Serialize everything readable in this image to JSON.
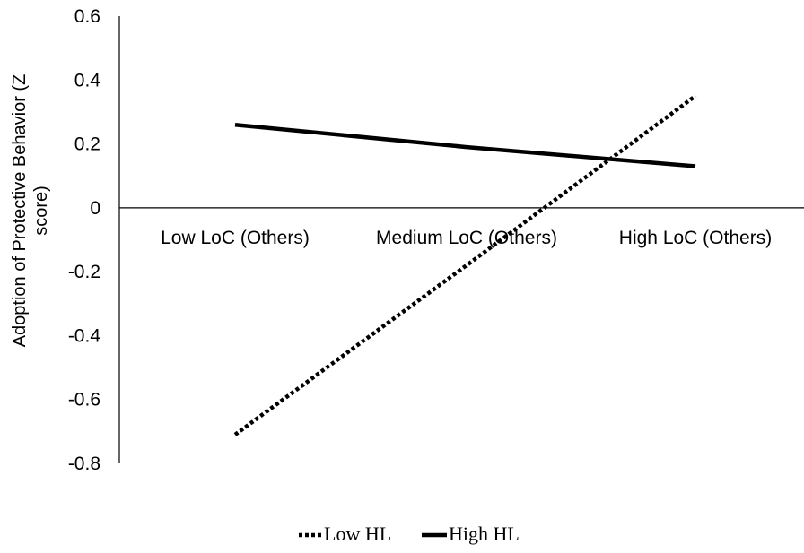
{
  "chart_data": {
    "type": "line",
    "title": "",
    "categories": [
      "Low LoC (Others)",
      "Medium LoC (Others)",
      "High LoC (Others)"
    ],
    "ylabel_lines": [
      "Adoption of Protective Behavior (Z",
      "score)"
    ],
    "ylim": [
      -0.8,
      0.6
    ],
    "yticks": [
      0.6,
      0.4,
      0.2,
      0,
      -0.2,
      -0.4,
      -0.6,
      -0.8
    ],
    "ytick_labels": [
      "0.6",
      "0.4",
      "0.2",
      "0",
      "-0.2",
      "-0.4",
      "-0.6",
      "-0.8"
    ],
    "grid": false,
    "legend_position": "bottom",
    "series": [
      {
        "name": "Low HL",
        "values": [
          -0.71,
          -0.18,
          0.35
        ],
        "style": "dotted",
        "color": "#000000"
      },
      {
        "name": "High HL",
        "values": [
          0.26,
          0.19,
          0.13
        ],
        "style": "solid",
        "color": "#000000"
      }
    ]
  }
}
